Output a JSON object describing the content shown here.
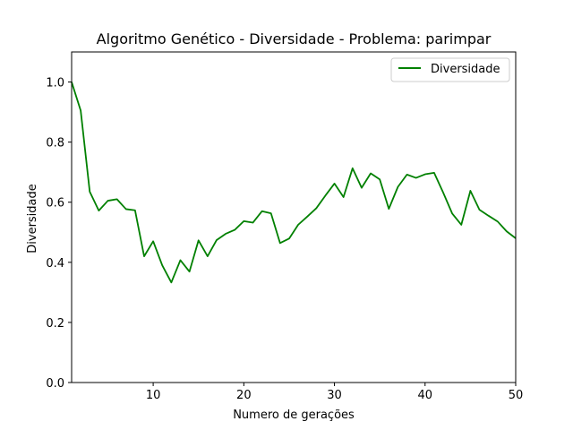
{
  "chart_data": {
    "type": "line",
    "title": "Algoritmo Genético - Diversidade - Problema: parimpar",
    "xlabel": "Numero de gerações",
    "ylabel": "Diversidade",
    "xlim": [
      1,
      50
    ],
    "ylim": [
      0,
      1.1
    ],
    "xticks": [
      10,
      20,
      30,
      40,
      50
    ],
    "yticks": [
      0.0,
      0.2,
      0.4,
      0.6,
      0.8,
      1.0
    ],
    "xtick_labels": [
      "10",
      "20",
      "30",
      "40",
      "50"
    ],
    "ytick_labels": [
      "0.0",
      "0.2",
      "0.4",
      "0.6",
      "0.8",
      "1.0"
    ],
    "grid": false,
    "legend_position": "top-right",
    "series": [
      {
        "name": "Diversidade",
        "color": "#008000",
        "x": [
          1,
          2,
          3,
          4,
          5,
          6,
          7,
          8,
          9,
          10,
          11,
          12,
          13,
          14,
          15,
          16,
          17,
          18,
          19,
          20,
          21,
          22,
          23,
          24,
          25,
          26,
          27,
          28,
          29,
          30,
          31,
          32,
          33,
          34,
          35,
          36,
          37,
          38,
          39,
          40,
          41,
          42,
          43,
          44,
          45,
          46,
          47,
          48,
          49,
          50
        ],
        "values": [
          1.0,
          0.905,
          0.635,
          0.572,
          0.605,
          0.61,
          0.577,
          0.573,
          0.42,
          0.47,
          0.39,
          0.333,
          0.407,
          0.369,
          0.473,
          0.42,
          0.474,
          0.495,
          0.508,
          0.537,
          0.532,
          0.57,
          0.563,
          0.464,
          0.479,
          0.525,
          0.552,
          0.58,
          0.622,
          0.662,
          0.617,
          0.713,
          0.648,
          0.696,
          0.676,
          0.578,
          0.651,
          0.692,
          0.681,
          0.693,
          0.698,
          0.632,
          0.562,
          0.525,
          0.638,
          0.575,
          0.555,
          0.536,
          0.503,
          0.48
        ]
      }
    ]
  }
}
